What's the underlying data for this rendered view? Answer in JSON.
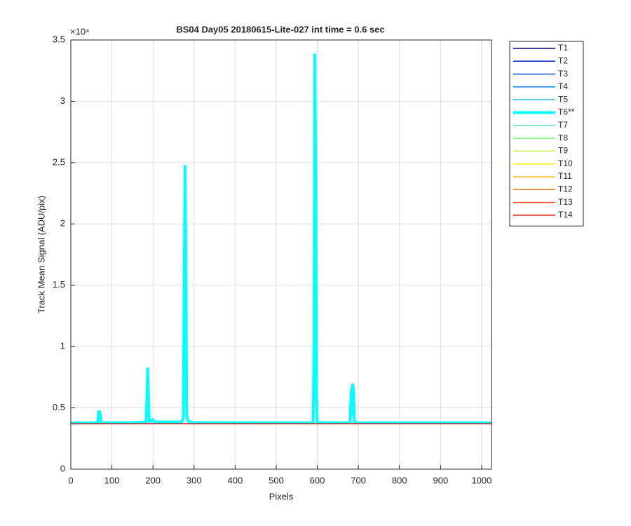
{
  "chart_data": {
    "type": "line",
    "title": "BS04 Day05 20180615-Lite-027 int time = 0.6 sec",
    "x_label": "Pixels",
    "y_label": "Track Mean Signal (ADU/pix)",
    "y_exponent": "×10⁴",
    "xlim": [
      0,
      1024
    ],
    "xticks": [
      0,
      100,
      200,
      300,
      400,
      500,
      600,
      700,
      800,
      900,
      1000
    ],
    "ylim": [
      0,
      35000
    ],
    "yticks": [
      0,
      {
        "value": 5000,
        "label": "0.5"
      },
      {
        "value": 10000,
        "label": "1"
      },
      {
        "value": 15000,
        "label": "1.5"
      },
      {
        "value": 20000,
        "label": "2"
      },
      {
        "value": 25000,
        "label": "2.5"
      },
      {
        "value": 30000,
        "label": "3"
      },
      {
        "value": 35000,
        "label": "3.5"
      }
    ],
    "grid": true,
    "legend": "outside-right",
    "series": [
      {
        "name": "T1",
        "color": "#000080",
        "line_width": 1.5,
        "x": [
          1,
          1024
        ],
        "values": [
          3700,
          3700
        ]
      },
      {
        "name": "T2",
        "color": "#0020c0",
        "line_width": 1.5,
        "x": [
          1,
          1024
        ],
        "values": [
          3700,
          3700
        ]
      },
      {
        "name": "T3",
        "color": "#0050e0",
        "line_width": 1.5,
        "x": [
          1,
          1024
        ],
        "values": [
          3700,
          3700
        ]
      },
      {
        "name": "T4",
        "color": "#1088f0",
        "line_width": 1.5,
        "x": [
          1,
          1024
        ],
        "values": [
          3700,
          3700
        ]
      },
      {
        "name": "T5",
        "color": "#10b8f0",
        "line_width": 1.5,
        "x": [
          1,
          1024
        ],
        "values": [
          3720,
          3720
        ]
      },
      {
        "name": "T6**",
        "color": "#00ffff",
        "line_width": 4,
        "x": [
          1,
          60,
          66,
          68,
          70,
          72,
          74,
          80,
          150,
          183,
          185,
          187,
          189,
          191,
          195,
          198,
          200,
          203,
          270,
          274,
          276,
          278,
          280,
          282,
          285,
          300,
          585,
          590,
          592,
          594,
          596,
          598,
          600,
          680,
          681,
          683,
          685,
          686,
          688,
          690,
          692,
          1024
        ],
        "values": [
          3750,
          3780,
          3850,
          4700,
          4700,
          4400,
          3800,
          3780,
          3800,
          3850,
          5500,
          8200,
          6000,
          3900,
          3900,
          4000,
          4050,
          3850,
          3850,
          4200,
          15000,
          24700,
          18000,
          4500,
          3900,
          3800,
          3780,
          3800,
          10000,
          33800,
          25000,
          6000,
          3800,
          3780,
          5000,
          6500,
          4500,
          6900,
          6700,
          4000,
          3780,
          3780
        ]
      },
      {
        "name": "T7",
        "color": "#50f0c0",
        "line_width": 1.5,
        "x": [
          1,
          1024
        ],
        "values": [
          3700,
          3700
        ]
      },
      {
        "name": "T8",
        "color": "#80f080",
        "line_width": 1.5,
        "x": [
          1,
          1024
        ],
        "values": [
          3700,
          3700
        ]
      },
      {
        "name": "T9",
        "color": "#c0f040",
        "line_width": 1.5,
        "x": [
          1,
          1024
        ],
        "values": [
          3700,
          3700
        ]
      },
      {
        "name": "T10",
        "color": "#f8f000",
        "line_width": 1.5,
        "x": [
          1,
          1024
        ],
        "values": [
          3700,
          3700
        ]
      },
      {
        "name": "T11",
        "color": "#f0c020",
        "line_width": 1.5,
        "x": [
          1,
          1024
        ],
        "values": [
          3700,
          3700
        ]
      },
      {
        "name": "T12",
        "color": "#f08020",
        "line_width": 1.5,
        "x": [
          1,
          1024
        ],
        "values": [
          3700,
          3700
        ]
      },
      {
        "name": "T13",
        "color": "#f04020",
        "line_width": 1.5,
        "x": [
          1,
          1024
        ],
        "values": [
          3700,
          3700
        ]
      },
      {
        "name": "T14",
        "color": "#e01010",
        "line_width": 1.5,
        "x": [
          1,
          1024
        ],
        "values": [
          3700,
          3700
        ]
      }
    ]
  }
}
